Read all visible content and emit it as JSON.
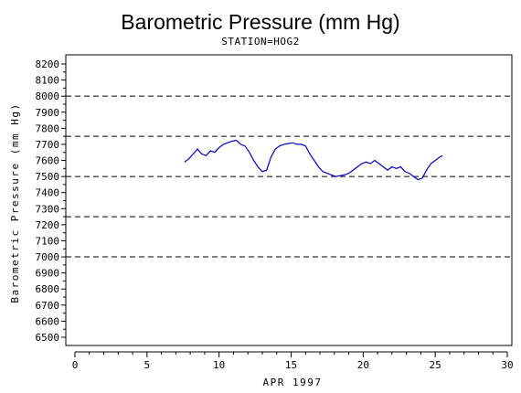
{
  "chart_data": {
    "type": "line",
    "title": "Barometric Pressure (mm Hg)",
    "subtitle": "STATION=HOG2",
    "xlabel": "APR 1997",
    "ylabel": "Barometric Pressure (mm Hg)",
    "xlim": [
      0,
      30
    ],
    "ylim": [
      6500,
      8200
    ],
    "xticks": [
      0,
      5,
      10,
      15,
      20,
      25,
      30
    ],
    "yticks": [
      6500,
      6600,
      6700,
      6800,
      6900,
      7000,
      7100,
      7200,
      7300,
      7400,
      7500,
      7600,
      7700,
      7800,
      7900,
      8000,
      8100,
      8200
    ],
    "reference_lines": [
      7000,
      7250,
      7500,
      7750,
      8000
    ],
    "grid": false,
    "series_color": "#0000cc",
    "series": [
      {
        "x": [
          7.6,
          7.9,
          8.2,
          8.5,
          8.8,
          9.1,
          9.4,
          9.7,
          10.0,
          10.3,
          10.6,
          10.9,
          11.2,
          11.5,
          11.8,
          12.1,
          12.4,
          12.7,
          13.0,
          13.3,
          13.6,
          13.9,
          14.2,
          14.5,
          14.8,
          15.1,
          15.4,
          15.7,
          16.0,
          16.3,
          16.6,
          16.9,
          17.2,
          17.5,
          17.8,
          18.1,
          18.4,
          18.7,
          19.0,
          19.3,
          19.6,
          19.9,
          20.2,
          20.5,
          20.8,
          21.1,
          21.4,
          21.7,
          22.0,
          22.3,
          22.6,
          22.9,
          23.2,
          23.5,
          23.8,
          24.1,
          24.4,
          24.7,
          25.0,
          25.3,
          25.5
        ],
        "y": [
          7590,
          7610,
          7640,
          7670,
          7640,
          7630,
          7660,
          7650,
          7680,
          7700,
          7710,
          7720,
          7725,
          7700,
          7690,
          7650,
          7600,
          7560,
          7530,
          7540,
          7620,
          7670,
          7690,
          7700,
          7705,
          7710,
          7700,
          7700,
          7690,
          7640,
          7600,
          7560,
          7530,
          7520,
          7510,
          7500,
          7505,
          7510,
          7520,
          7540,
          7560,
          7580,
          7590,
          7580,
          7600,
          7580,
          7560,
          7540,
          7560,
          7550,
          7560,
          7530,
          7520,
          7500,
          7480,
          7490,
          7540,
          7580,
          7600,
          7620,
          7630
        ]
      }
    ]
  }
}
